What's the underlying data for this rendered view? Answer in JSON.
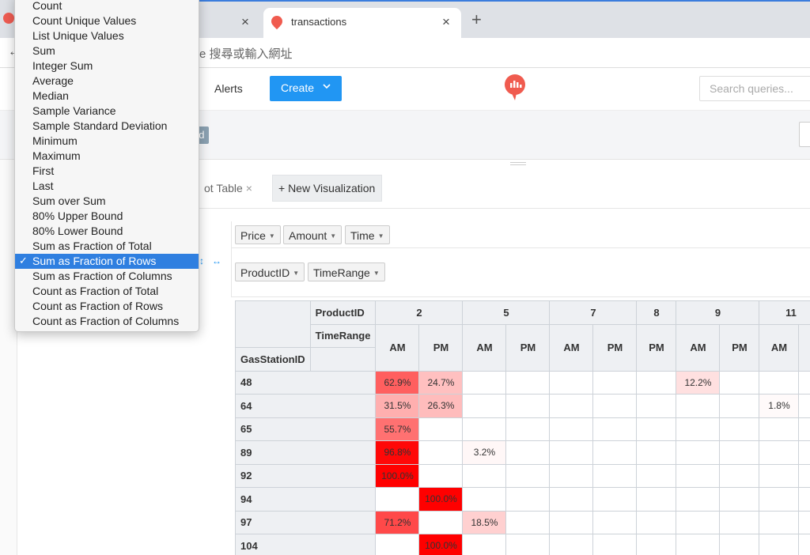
{
  "browser": {
    "tab_active_title": "transactions",
    "new_tab": "+",
    "close_glyph": "×",
    "omnibox_text": "e 搜尋或輸入網址",
    "back_glyph": "←"
  },
  "header": {
    "alerts_label": "Alerts",
    "create_label": "Create",
    "search_placeholder": "Search queries..."
  },
  "strip": {
    "badge_label": "ed"
  },
  "viz_tabs": {
    "pivot_label": "ot Table",
    "pivot_close": "×",
    "new_viz_label": "+ New Visualization"
  },
  "pivot": {
    "vals_pills": [
      "Price",
      "Amount",
      "Time"
    ],
    "col_pills": [
      "ProductID",
      "TimeRange"
    ],
    "arrows": [
      "↕",
      "↔"
    ],
    "row_attr": "GasStationID",
    "col_attrs": [
      "ProductID",
      "TimeRange"
    ],
    "product_headers": [
      {
        "label": "2",
        "span": 2
      },
      {
        "label": "5",
        "span": 2
      },
      {
        "label": "7",
        "span": 2
      },
      {
        "label": "8",
        "span": 1
      },
      {
        "label": "9",
        "span": 2
      },
      {
        "label": "11",
        "span": 2
      }
    ],
    "time_headers": [
      "AM",
      "PM",
      "AM",
      "PM",
      "AM",
      "PM",
      "PM",
      "AM",
      "PM",
      "AM",
      ""
    ],
    "rows": [
      {
        "label": "48",
        "cells": [
          "62.9%",
          "24.7%",
          "",
          "",
          "",
          "",
          "",
          "12.2%",
          "",
          "",
          ""
        ]
      },
      {
        "label": "64",
        "cells": [
          "31.5%",
          "26.3%",
          "",
          "",
          "",
          "",
          "",
          "",
          "",
          "1.8%",
          ""
        ]
      },
      {
        "label": "65",
        "cells": [
          "55.7%",
          "",
          "",
          "",
          "",
          "",
          "",
          "",
          "",
          "",
          ""
        ]
      },
      {
        "label": "89",
        "cells": [
          "96.8%",
          "",
          "3.2%",
          "",
          "",
          "",
          "",
          "",
          "",
          "",
          ""
        ]
      },
      {
        "label": "92",
        "cells": [
          "100.0%",
          "",
          "",
          "",
          "",
          "",
          "",
          "",
          "",
          "",
          ""
        ]
      },
      {
        "label": "94",
        "cells": [
          "",
          "100.0%",
          "",
          "",
          "",
          "",
          "",
          "",
          "",
          "",
          ""
        ]
      },
      {
        "label": "97",
        "cells": [
          "71.2%",
          "",
          "18.5%",
          "",
          "",
          "",
          "",
          "",
          "",
          "",
          ""
        ]
      },
      {
        "label": "104",
        "cells": [
          "",
          "100.0%",
          "",
          "",
          "",
          "",
          "",
          "",
          "",
          "",
          ""
        ]
      }
    ],
    "heat_color": "#ff0000"
  },
  "aggregator_menu": {
    "selected_check": "✓",
    "items": [
      "Count",
      "Count Unique Values",
      "List Unique Values",
      "Sum",
      "Integer Sum",
      "Average",
      "Median",
      "Sample Variance",
      "Sample Standard Deviation",
      "Minimum",
      "Maximum",
      "First",
      "Last",
      "Sum over Sum",
      "80% Upper Bound",
      "80% Lower Bound",
      "Sum as Fraction of Total",
      "Sum as Fraction of Rows",
      "Sum as Fraction of Columns",
      "Count as Fraction of Total",
      "Count as Fraction of Rows",
      "Count as Fraction of Columns"
    ],
    "selected_index": 17
  },
  "colors": {
    "accent": "#2196f3",
    "brand": "#f05b4f",
    "selection": "#2f7fe0"
  }
}
